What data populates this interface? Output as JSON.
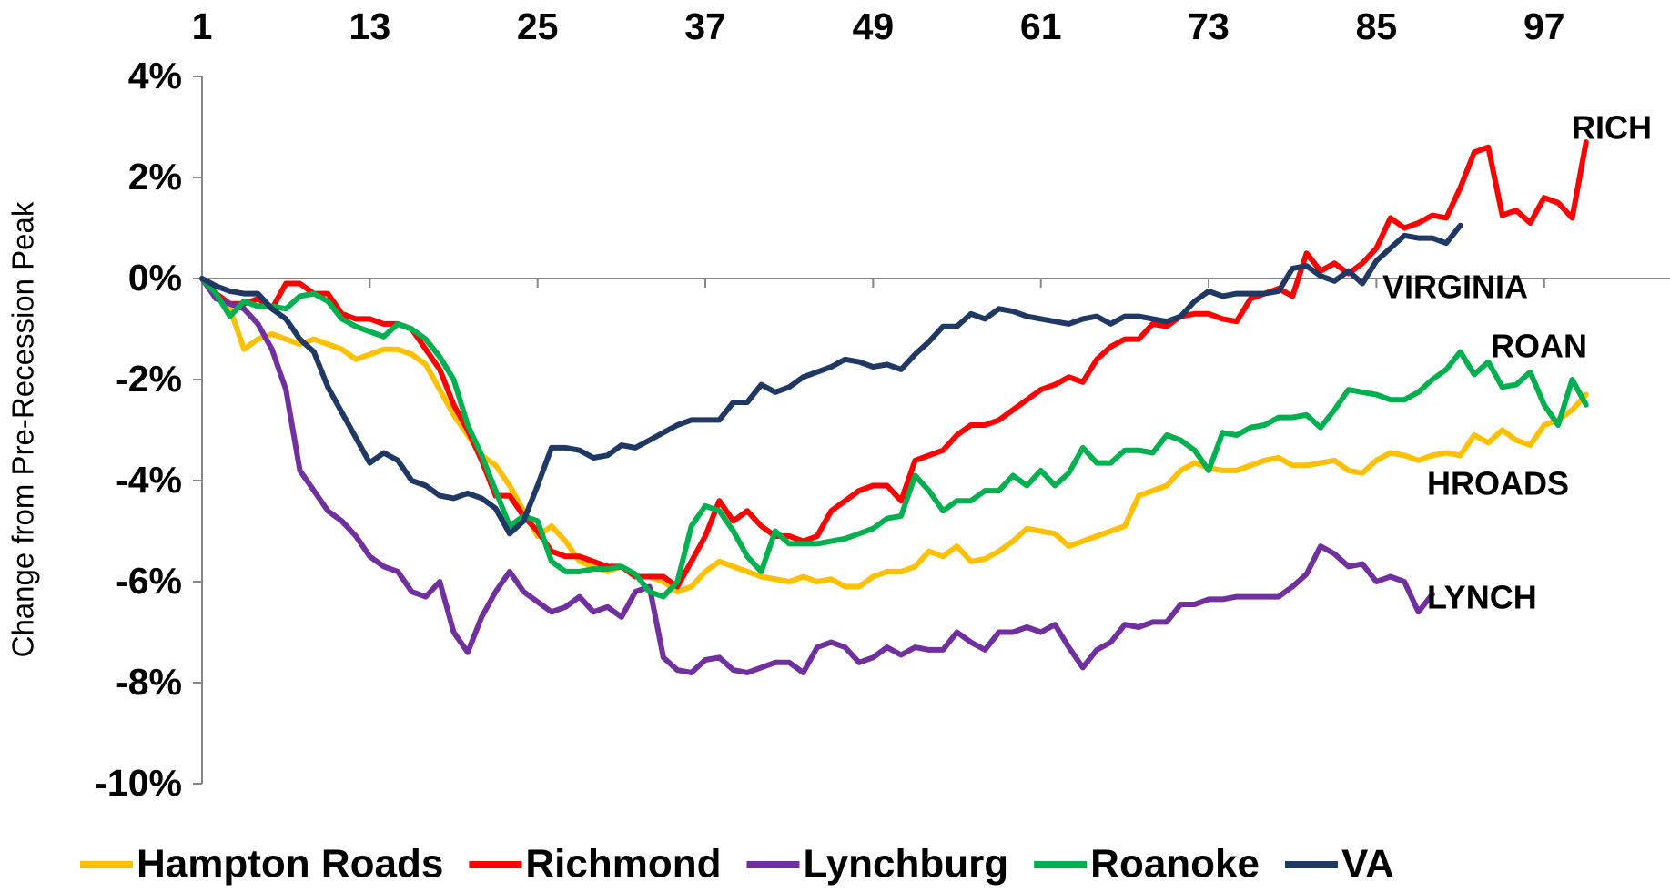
{
  "chart_data": {
    "type": "line",
    "y_label": "Change from Pre-Recession Peak",
    "x": [
      1,
      2,
      3,
      4,
      5,
      6,
      7,
      8,
      9,
      10,
      11,
      12,
      13,
      14,
      15,
      16,
      17,
      18,
      19,
      20,
      21,
      22,
      23,
      24,
      25,
      26,
      27,
      28,
      29,
      30,
      31,
      32,
      33,
      34,
      35,
      36,
      37,
      38,
      39,
      40,
      41,
      42,
      43,
      44,
      45,
      46,
      47,
      48,
      49,
      50,
      51,
      52,
      53,
      54,
      55,
      56,
      57,
      58,
      59,
      60,
      61,
      62,
      63,
      64,
      65,
      66,
      67,
      68,
      69,
      70,
      71,
      72,
      73,
      74,
      75,
      76,
      77,
      78,
      79,
      80,
      81,
      82,
      83,
      84,
      85,
      86,
      87,
      88,
      89,
      90,
      91,
      92,
      93,
      94,
      95,
      96,
      97,
      98,
      99,
      100
    ],
    "xlim": [
      1,
      106
    ],
    "xticks": [
      1,
      13,
      25,
      37,
      49,
      61,
      73,
      85,
      97
    ],
    "ylim": [
      -10,
      4
    ],
    "yticks": [
      {
        "value": -10,
        "label": "-10%"
      },
      {
        "value": -8,
        "label": "-8%"
      },
      {
        "value": -6,
        "label": "-6%"
      },
      {
        "value": -4,
        "label": "-4%"
      },
      {
        "value": -2,
        "label": "-2%"
      },
      {
        "value": 0,
        "label": "0%"
      },
      {
        "value": 2,
        "label": "2%"
      },
      {
        "value": 4,
        "label": "4%"
      }
    ],
    "grid": false,
    "legend": "bottom",
    "series": [
      {
        "name": "Hampton Roads",
        "color": "#FFC000",
        "values": [
          0,
          -0.3,
          -0.6,
          -1.4,
          -1.2,
          -1.1,
          -1.2,
          -1.3,
          -1.2,
          -1.3,
          -1.4,
          -1.6,
          -1.5,
          -1.4,
          -1.4,
          -1.5,
          -1.7,
          -2.2,
          -2.7,
          -3.1,
          -3.5,
          -3.7,
          -4.1,
          -4.6,
          -5.1,
          -4.9,
          -5.2,
          -5.6,
          -5.7,
          -5.8,
          -5.7,
          -5.9,
          -5.9,
          -6.0,
          -6.2,
          -6.1,
          -5.8,
          -5.6,
          -5.7,
          -5.8,
          -5.9,
          -5.95,
          -6.0,
          -5.9,
          -6.0,
          -5.95,
          -6.1,
          -6.1,
          -5.9,
          -5.8,
          -5.8,
          -5.7,
          -5.4,
          -5.5,
          -5.3,
          -5.6,
          -5.55,
          -5.4,
          -5.2,
          -4.95,
          -5.0,
          -5.05,
          -5.3,
          -5.2,
          -5.1,
          -5.0,
          -4.9,
          -4.3,
          -4.2,
          -4.1,
          -3.8,
          -3.65,
          -3.75,
          -3.8,
          -3.8,
          -3.7,
          -3.6,
          -3.55,
          -3.7,
          -3.7,
          -3.65,
          -3.6,
          -3.8,
          -3.85,
          -3.6,
          -3.45,
          -3.5,
          -3.6,
          -3.5,
          -3.45,
          -3.5,
          -3.1,
          -3.25,
          -3.0,
          -3.2,
          -3.3,
          -2.9,
          -2.8,
          -2.6,
          -2.3
        ]
      },
      {
        "name": "Richmond",
        "color": "#FF0000",
        "values": [
          0,
          -0.3,
          -0.5,
          -0.5,
          -0.4,
          -0.6,
          -0.1,
          -0.1,
          -0.3,
          -0.3,
          -0.7,
          -0.8,
          -0.8,
          -0.9,
          -0.9,
          -1.0,
          -1.4,
          -1.8,
          -2.5,
          -3.0,
          -3.6,
          -4.3,
          -4.3,
          -4.7,
          -5.0,
          -5.4,
          -5.5,
          -5.5,
          -5.6,
          -5.7,
          -5.7,
          -5.9,
          -5.9,
          -5.9,
          -6.1,
          -5.6,
          -5.1,
          -4.4,
          -4.8,
          -4.6,
          -4.9,
          -5.1,
          -5.1,
          -5.2,
          -5.1,
          -4.6,
          -4.4,
          -4.2,
          -4.1,
          -4.1,
          -4.4,
          -3.6,
          -3.5,
          -3.4,
          -3.1,
          -2.9,
          -2.9,
          -2.8,
          -2.6,
          -2.4,
          -2.2,
          -2.1,
          -1.95,
          -2.05,
          -1.6,
          -1.35,
          -1.2,
          -1.2,
          -0.9,
          -0.95,
          -0.75,
          -0.7,
          -0.7,
          -0.8,
          -0.85,
          -0.4,
          -0.3,
          -0.2,
          -0.35,
          0.5,
          0.15,
          0.3,
          0.1,
          0.3,
          0.6,
          1.2,
          1.0,
          1.1,
          1.25,
          1.2,
          1.8,
          2.5,
          2.6,
          1.25,
          1.35,
          1.1,
          1.6,
          1.5,
          1.2,
          2.7
        ]
      },
      {
        "name": "Lynchburg",
        "color": "#7030A0",
        "values": [
          0,
          -0.4,
          -0.5,
          -0.6,
          -0.9,
          -1.4,
          -2.2,
          -3.8,
          -4.2,
          -4.6,
          -4.8,
          -5.1,
          -5.5,
          -5.7,
          -5.8,
          -6.2,
          -6.3,
          -6.0,
          -7.0,
          -7.4,
          -6.7,
          -6.2,
          -5.8,
          -6.2,
          -6.4,
          -6.6,
          -6.5,
          -6.3,
          -6.6,
          -6.5,
          -6.7,
          -6.2,
          -6.1,
          -7.5,
          -7.75,
          -7.8,
          -7.55,
          -7.5,
          -7.75,
          -7.8,
          -7.7,
          -7.6,
          -7.6,
          -7.8,
          -7.3,
          -7.2,
          -7.3,
          -7.6,
          -7.5,
          -7.3,
          -7.45,
          -7.3,
          -7.35,
          -7.35,
          -7.0,
          -7.2,
          -7.35,
          -7.0,
          -7.0,
          -6.9,
          -7.0,
          -6.85,
          -7.3,
          -7.7,
          -7.35,
          -7.2,
          -6.85,
          -6.9,
          -6.8,
          -6.8,
          -6.45,
          -6.45,
          -6.35,
          -6.35,
          -6.3,
          -6.3,
          -6.3,
          -6.3,
          -6.1,
          -5.85,
          -5.3,
          -5.45,
          -5.7,
          -5.65,
          -6.0,
          -5.9,
          -6.0,
          -6.6,
          -6.25,
          null,
          null,
          null,
          null,
          null,
          null,
          null,
          null,
          null,
          null,
          null
        ]
      },
      {
        "name": "Roanoke",
        "color": "#00B050",
        "values": [
          0,
          -0.3,
          -0.75,
          -0.45,
          -0.55,
          -0.55,
          -0.6,
          -0.35,
          -0.3,
          -0.45,
          -0.8,
          -0.95,
          -1.05,
          -1.15,
          -0.9,
          -1.0,
          -1.2,
          -1.55,
          -2.0,
          -2.9,
          -3.5,
          -4.2,
          -4.9,
          -4.7,
          -4.8,
          -5.6,
          -5.8,
          -5.8,
          -5.75,
          -5.75,
          -5.7,
          -5.85,
          -6.2,
          -6.3,
          -6.0,
          -4.9,
          -4.5,
          -4.6,
          -5.0,
          -5.5,
          -5.8,
          -5.0,
          -5.25,
          -5.25,
          -5.25,
          -5.2,
          -5.15,
          -5.05,
          -4.95,
          -4.75,
          -4.7,
          -3.9,
          -4.2,
          -4.6,
          -4.4,
          -4.4,
          -4.2,
          -4.2,
          -3.9,
          -4.1,
          -3.8,
          -4.1,
          -3.85,
          -3.35,
          -3.65,
          -3.65,
          -3.4,
          -3.4,
          -3.45,
          -3.1,
          -3.2,
          -3.4,
          -3.8,
          -3.05,
          -3.1,
          -2.95,
          -2.9,
          -2.75,
          -2.75,
          -2.7,
          -2.95,
          -2.6,
          -2.2,
          -2.25,
          -2.3,
          -2.4,
          -2.4,
          -2.25,
          -2.0,
          -1.8,
          -1.45,
          -1.9,
          -1.65,
          -2.15,
          -2.1,
          -1.85,
          -2.5,
          -2.9,
          -2.0,
          -2.5
        ]
      },
      {
        "name": "VA",
        "color": "#203864",
        "values": [
          0,
          -0.15,
          -0.25,
          -0.3,
          -0.3,
          -0.6,
          -0.8,
          -1.2,
          -1.45,
          -2.15,
          -2.65,
          -3.15,
          -3.65,
          -3.45,
          -3.6,
          -4.0,
          -4.1,
          -4.3,
          -4.35,
          -4.25,
          -4.35,
          -4.55,
          -5.05,
          -4.8,
          -4.1,
          -3.35,
          -3.35,
          -3.4,
          -3.55,
          -3.5,
          -3.3,
          -3.35,
          -3.2,
          -3.05,
          -2.9,
          -2.8,
          -2.8,
          -2.8,
          -2.45,
          -2.45,
          -2.1,
          -2.25,
          -2.15,
          -1.95,
          -1.85,
          -1.75,
          -1.6,
          -1.65,
          -1.75,
          -1.7,
          -1.8,
          -1.5,
          -1.25,
          -0.95,
          -0.95,
          -0.7,
          -0.8,
          -0.6,
          -0.65,
          -0.75,
          -0.8,
          -0.85,
          -0.9,
          -0.8,
          -0.75,
          -0.9,
          -0.75,
          -0.75,
          -0.8,
          -0.85,
          -0.75,
          -0.45,
          -0.25,
          -0.35,
          -0.3,
          -0.3,
          -0.3,
          -0.25,
          0.2,
          0.25,
          0.05,
          -0.05,
          0.15,
          -0.1,
          0.35,
          0.6,
          0.85,
          0.8,
          0.8,
          0.7,
          1.05,
          null,
          null,
          null,
          null,
          null,
          null,
          null,
          null,
          null
        ]
      }
    ],
    "annotations": [
      "RICH",
      "VIRGINIA",
      "ROAN",
      "HROADS",
      "LYNCH"
    ]
  }
}
